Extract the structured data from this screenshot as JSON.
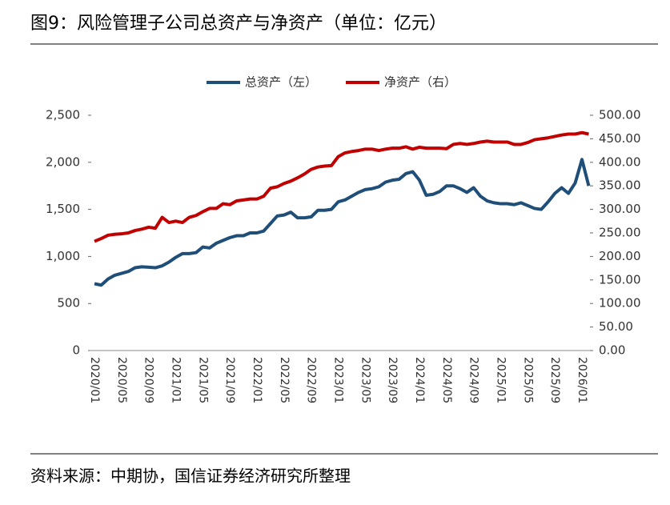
{
  "chart_data": {
    "type": "line",
    "title": "图9：风险管理子公司总资产与净资产（单位：亿元）",
    "source": "资料来源：中期协，国信证券经济研究所整理",
    "categories": [
      "2020/01",
      null,
      null,
      null,
      "2020/05",
      null,
      null,
      null,
      "2020/09",
      null,
      null,
      null,
      "2021/01",
      null,
      null,
      null,
      "2021/05",
      null,
      null,
      null,
      "2021/09",
      null,
      null,
      null,
      "2022/01",
      null,
      null,
      null,
      "2022/05",
      null,
      null,
      null,
      "2022/09",
      null,
      null,
      null,
      "2023/01",
      null,
      null,
      null,
      "2023/05",
      null,
      null,
      null,
      "2023/09",
      null,
      null,
      null,
      "2024/01",
      null,
      null,
      null,
      "2024/05",
      null,
      null,
      null,
      "2024/09",
      null,
      null,
      null,
      "2025/01",
      null,
      null,
      null,
      "2025/05",
      null,
      null,
      null,
      "2025/09",
      null,
      null,
      null,
      "2026/01",
      null
    ],
    "series": [
      {
        "name": "总资产（左）",
        "color": "#1f4e79",
        "axis": "y",
        "values": [
          710,
          695,
          760,
          800,
          820,
          840,
          880,
          890,
          885,
          880,
          900,
          940,
          990,
          1030,
          1030,
          1040,
          1100,
          1090,
          1140,
          1170,
          1200,
          1220,
          1220,
          1250,
          1250,
          1270,
          1350,
          1430,
          1440,
          1470,
          1410,
          1410,
          1420,
          1490,
          1490,
          1500,
          1580,
          1600,
          1640,
          1680,
          1710,
          1720,
          1740,
          1790,
          1810,
          1820,
          1880,
          1900,
          1810,
          1650,
          1660,
          1690,
          1750,
          1750,
          1720,
          1680,
          1730,
          1640,
          1590,
          1570,
          1560,
          1560,
          1550,
          1570,
          1540,
          1510,
          1500,
          1580,
          1670,
          1730,
          1670,
          1780,
          2030,
          1750
        ]
      },
      {
        "name": "净资产（右）",
        "color": "#c00000",
        "axis": "y2",
        "values": [
          232,
          238,
          245,
          247,
          248,
          250,
          255,
          258,
          262,
          260,
          283,
          272,
          275,
          272,
          283,
          287,
          295,
          302,
          302,
          312,
          310,
          318,
          320,
          322,
          322,
          328,
          345,
          348,
          355,
          360,
          367,
          375,
          385,
          390,
          392,
          393,
          412,
          420,
          423,
          425,
          428,
          428,
          425,
          428,
          430,
          430,
          433,
          428,
          432,
          430,
          430,
          430,
          429,
          438,
          440,
          438,
          440,
          443,
          445,
          443,
          443,
          443,
          438,
          438,
          442,
          448,
          450,
          452,
          455,
          458,
          460,
          460,
          463,
          460
        ]
      }
    ],
    "ylim": [
      0,
      2500
    ],
    "yticks": [
      0,
      500,
      {
        "value": 1000,
        "label": "1,000"
      },
      {
        "value": 1500,
        "label": "1,500"
      },
      {
        "value": 2000,
        "label": "2,000"
      },
      {
        "value": 2500,
        "label": "2,500"
      }
    ],
    "y2lim": [
      0,
      500
    ],
    "y2ticks": [
      {
        "value": 0,
        "label": "0.00"
      },
      {
        "value": 50,
        "label": "50.00"
      },
      {
        "value": 100,
        "label": "100.00"
      },
      {
        "value": 150,
        "label": "150.00"
      },
      {
        "value": 200,
        "label": "200.00"
      },
      {
        "value": 250,
        "label": "250.00"
      },
      {
        "value": 300,
        "label": "300.00"
      },
      {
        "value": 350,
        "label": "350.00"
      },
      {
        "value": 400,
        "label": "400.00"
      },
      {
        "value": 450,
        "label": "450.00"
      },
      {
        "value": 500,
        "label": "500.00"
      }
    ],
    "legend": "top",
    "grid": false
  }
}
